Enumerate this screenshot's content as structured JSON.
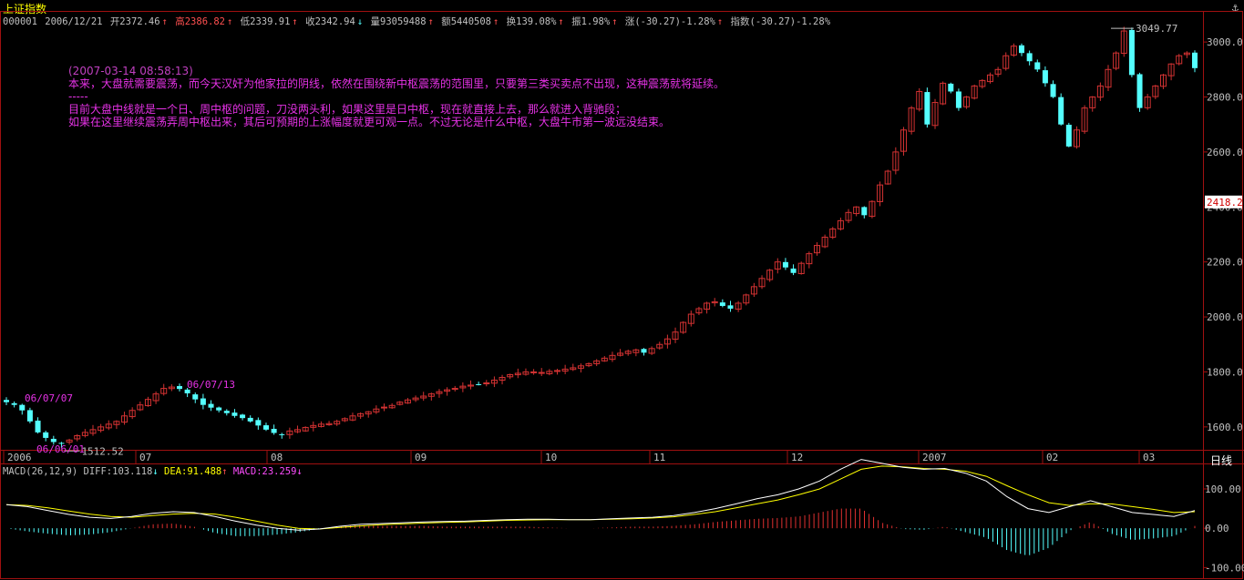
{
  "header": {
    "index_name": "上证指数",
    "pin_icon": "anchor-pin-icon",
    "quote": {
      "code": "000001",
      "date": "2006/12/21",
      "open": "开2372.46",
      "high": "高2386.82",
      "low": "低2339.91",
      "close": "收2342.94",
      "volume": "量93059488",
      "amount": "额5440508",
      "turnover": "换139.08%",
      "amplitude": "振1.98%",
      "change": "涨(-30.27)-1.28%",
      "index_change": "指数(-30.27)-1.28%"
    }
  },
  "notes": {
    "timestamp": "(2007-03-14 08:58:13)",
    "line1": "本来，大盘就需要震荡，而今天汉奸为他家拉的阴线，依然在围绕新中枢震荡的范围里，只要第三类买卖点不出现，这种震荡就将延续。",
    "sep": "-----",
    "line2": "目前大盘中线就是一个日、周中枢的问题，刀没两头利，如果这里是日中枢，现在就直接上去，那么就进入背驰段；",
    "line3": "如果在这里继续震荡弄周中枢出来，其后可预期的上涨幅度就更可观一点。不过无论是什么中枢，大盘牛市第一波远没结束。"
  },
  "chart_data": {
    "type": "candlestick",
    "y_axis_labels": [
      "3000.0",
      "2800.0",
      "2600.0",
      "2400.0",
      "2200.0",
      "2000.0",
      "1800.0",
      "1600.0"
    ],
    "y_range": [
      1520,
      3060
    ],
    "current_price_tag": "2418.2",
    "current_price": 2418.2,
    "x_axis_labels": [
      "2006",
      "07",
      "08",
      "09",
      "10",
      "11",
      "12",
      "2007",
      "02",
      "03"
    ],
    "annotations": {
      "high_value": "3049.77",
      "low_value": "1512.52",
      "label_a": "06/07/07",
      "label_b": "06/07/13",
      "label_c": "06/06/01"
    },
    "close_series": [
      1690,
      1680,
      1660,
      1620,
      1580,
      1560,
      1545,
      1540,
      1552,
      1568,
      1580,
      1590,
      1600,
      1610,
      1620,
      1640,
      1660,
      1680,
      1700,
      1720,
      1740,
      1745,
      1738,
      1722,
      1700,
      1680,
      1670,
      1660,
      1650,
      1640,
      1632,
      1620,
      1605,
      1590,
      1578,
      1570,
      1585,
      1590,
      1598,
      1605,
      1610,
      1612,
      1620,
      1630,
      1640,
      1648,
      1655,
      1665,
      1672,
      1678,
      1690,
      1698,
      1705,
      1712,
      1720,
      1728,
      1735,
      1740,
      1748,
      1752,
      1755,
      1760,
      1770,
      1780,
      1790,
      1795,
      1800,
      1800,
      1798,
      1802,
      1805,
      1810,
      1815,
      1822,
      1830,
      1840,
      1850,
      1860,
      1868,
      1875,
      1880,
      1870,
      1885,
      1900,
      1920,
      1945,
      1980,
      2010,
      2030,
      2050,
      2055,
      2040,
      2030,
      2050,
      2080,
      2110,
      2140,
      2170,
      2200,
      2180,
      2160,
      2195,
      2230,
      2260,
      2290,
      2320,
      2350,
      2380,
      2400,
      2370,
      2420,
      2480,
      2530,
      2600,
      2680,
      2760,
      2820,
      2700,
      2780,
      2850,
      2820,
      2760,
      2800,
      2840,
      2860,
      2880,
      2900,
      2950,
      2985,
      2960,
      2930,
      2900,
      2850,
      2800,
      2700,
      2620,
      2680,
      2760,
      2800,
      2840,
      2900,
      2960,
      3040,
      2880,
      2760,
      2800,
      2840,
      2880,
      2920,
      2950,
      2960,
      2905
    ],
    "macd": {
      "legend": "MACD(26,12,9)",
      "diff_label": "DIFF:103.118",
      "dea_label": "DEA:91.488",
      "macd_label": "MACD:23.259",
      "y_axis_labels": [
        "100.00",
        "0.00",
        "-100.00"
      ],
      "y_range": [
        -120,
        130
      ],
      "diff_series": [
        60,
        55,
        45,
        35,
        28,
        25,
        30,
        38,
        42,
        40,
        30,
        18,
        8,
        0,
        -5,
        -2,
        5,
        10,
        12,
        14,
        16,
        17,
        18,
        20,
        22,
        23,
        23,
        22,
        22,
        24,
        26,
        28,
        32,
        40,
        50,
        62,
        75,
        85,
        100,
        120,
        150,
        175,
        165,
        155,
        150,
        152,
        140,
        120,
        80,
        50,
        40,
        55,
        70,
        55,
        40,
        35,
        30,
        45
      ],
      "dea_series": [
        60,
        58,
        52,
        44,
        36,
        30,
        28,
        32,
        36,
        38,
        36,
        28,
        18,
        8,
        0,
        -2,
        2,
        6,
        9,
        11,
        13,
        15,
        16,
        18,
        20,
        21,
        22,
        22,
        22,
        23,
        24,
        26,
        29,
        35,
        42,
        52,
        62,
        72,
        85,
        100,
        125,
        150,
        158,
        156,
        152,
        150,
        145,
        132,
        108,
        85,
        65,
        58,
        62,
        62,
        55,
        48,
        40,
        42
      ],
      "bar_series": [
        0,
        -8,
        -14,
        -18,
        -16,
        -10,
        0,
        10,
        12,
        4,
        -12,
        -20,
        -20,
        -16,
        -10,
        -2,
        6,
        8,
        6,
        6,
        6,
        4,
        4,
        4,
        4,
        4,
        2,
        0,
        0,
        2,
        4,
        4,
        6,
        10,
        16,
        20,
        24,
        26,
        30,
        40,
        50,
        50,
        14,
        -2,
        -4,
        4,
        -10,
        -24,
        -56,
        -70,
        -50,
        -6,
        16,
        -14,
        -30,
        -26,
        -20,
        6
      ]
    }
  },
  "footer": {
    "period_button": "日线"
  }
}
